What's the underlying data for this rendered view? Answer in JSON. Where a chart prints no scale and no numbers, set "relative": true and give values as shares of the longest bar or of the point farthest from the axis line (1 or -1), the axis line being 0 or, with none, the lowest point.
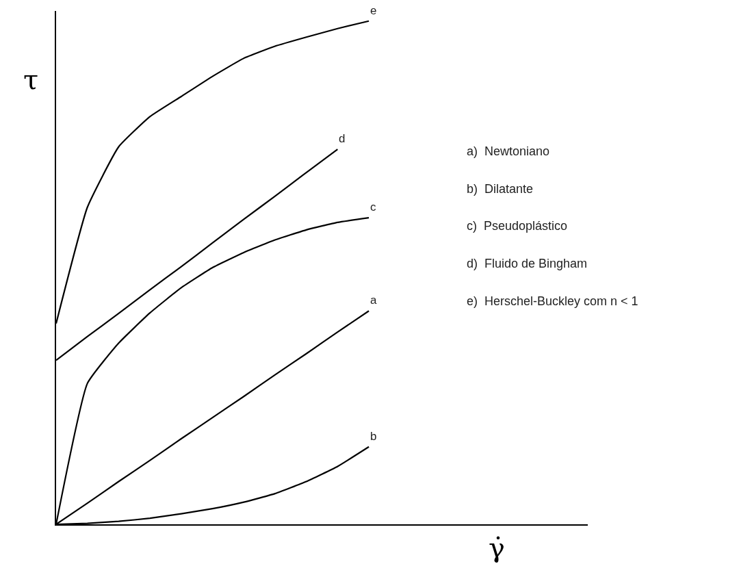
{
  "chart_data": {
    "type": "line",
    "relative": true,
    "xlabel": "γ̇",
    "ylabel": "τ",
    "legend": false,
    "marker": "none",
    "line_style": "solid",
    "categories": [
      null,
      null,
      null,
      null,
      null,
      null,
      null,
      null,
      null,
      null,
      null,
      null,
      null,
      null,
      null,
      null,
      null,
      null
    ],
    "series": [
      {
        "name": "a",
        "color": "#000000",
        "values": [
          0,
          0.042,
          0.085,
          0.127,
          0.17,
          0.212,
          0.254,
          0.297,
          0.339,
          0.382,
          0.424,
          null,
          null,
          null,
          null,
          null,
          null,
          null
        ]
      },
      {
        "name": "b",
        "color": "#000000",
        "values": [
          0,
          0.002,
          0.006,
          0.012,
          0.021,
          0.031,
          0.044,
          0.061,
          0.085,
          0.115,
          0.154,
          null,
          null,
          null,
          null,
          null,
          null,
          null
        ]
      },
      {
        "name": "c",
        "color": "#000000",
        "values": [
          0,
          0.28,
          0.36,
          0.42,
          0.47,
          0.51,
          0.54,
          0.565,
          0.585,
          0.6,
          0.609,
          null,
          null,
          null,
          null,
          null,
          null,
          null
        ]
      },
      {
        "name": "d",
        "color": "#000000",
        "values": [
          0.326,
          0.373,
          0.419,
          0.466,
          0.512,
          0.559,
          0.606,
          0.652,
          0.699,
          0.745,
          null,
          null,
          null,
          null,
          null,
          null,
          null,
          null
        ]
      },
      {
        "name": "e",
        "color": "#000000",
        "values": [
          0.399,
          0.63,
          0.75,
          0.81,
          0.85,
          0.89,
          0.926,
          0.95,
          0.968,
          0.985,
          1.0,
          null,
          null,
          null,
          null,
          null,
          null,
          null
        ]
      }
    ],
    "annotations": [
      "a)  Newtoniano",
      "b)  Dilatante",
      "c)  Pseudoplástico",
      "d)  Fluido de Bingham",
      "e)  Herschel-Buckley com n < 1"
    ]
  }
}
